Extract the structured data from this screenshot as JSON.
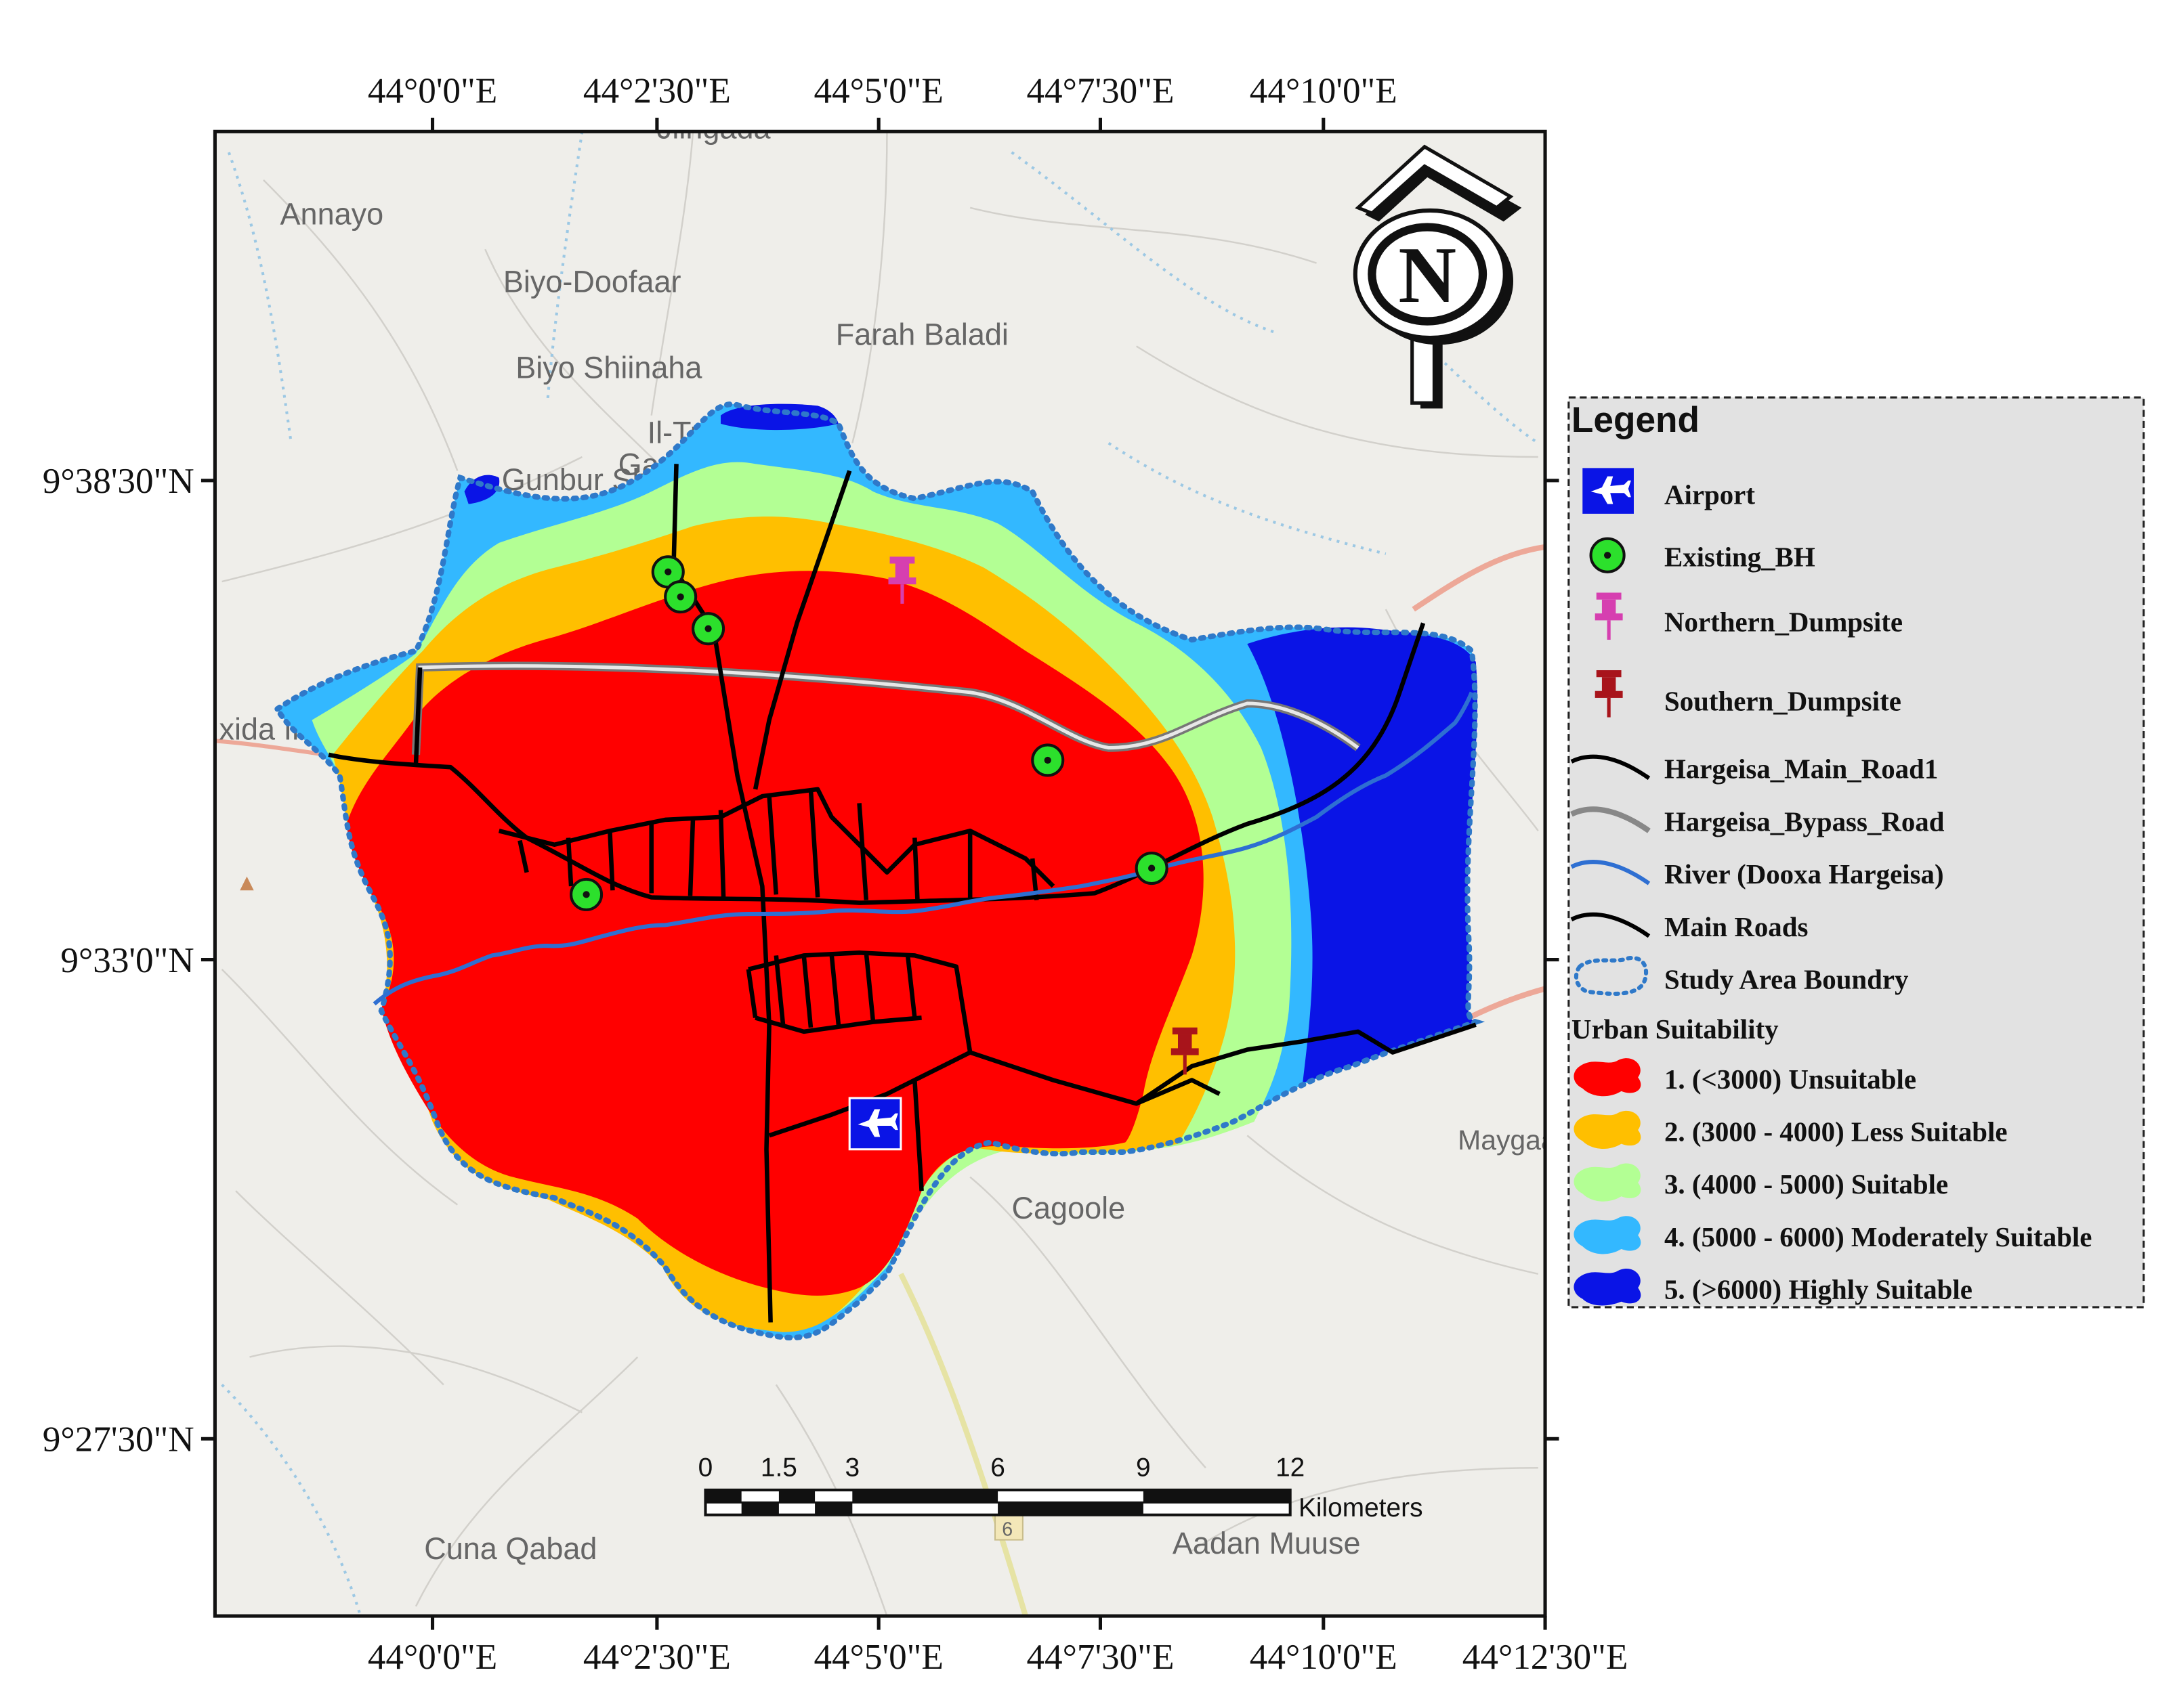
{
  "map": {
    "top_lon_labels": [
      "44°0'0\"E",
      "44°2'30\"E",
      "44°5'0\"E",
      "44°7'30\"E",
      "44°10'0\"E"
    ],
    "bottom_lon_labels": [
      "44°0'0\"E",
      "44°2'30\"E",
      "44°5'0\"E",
      "44°7'30\"E",
      "44°10'0\"E",
      "44°12'30\"E"
    ],
    "lat_labels": [
      "9°38'30\"N",
      "9°33'0\"N",
      "9°27'30\"N"
    ],
    "north_arrow_letter": "N",
    "basemap_places": [
      "Jiingada",
      "Annayo",
      "Biyo-Doofaar",
      "Farah Baladi",
      "Biyo Shiinaha",
      "Il-Tuug",
      "Gaa",
      "Gunbur Sh.",
      "xida Inanta",
      "Cagoole",
      "Maygaagta Wayn",
      "Cuna Qabad",
      "Aadan Muuse",
      "6"
    ]
  },
  "legend": {
    "title": "Legend",
    "items": [
      {
        "label": "Airport",
        "icon": "airport-icon"
      },
      {
        "label": "Existing_BH",
        "icon": "borehole-icon"
      },
      {
        "label": "Northern_Dumpsite",
        "icon": "pin-icon",
        "color": "#d63fb0"
      },
      {
        "label": "Southern_Dumpsite",
        "icon": "pin-icon",
        "color": "#a8141b"
      },
      {
        "label": "Hargeisa_Main_Road1",
        "icon": "road-line-icon"
      },
      {
        "label": "Hargeisa_Bypass_Road",
        "icon": "bypass-line-icon"
      },
      {
        "label": "River (Dooxa Hargeisa)",
        "icon": "river-line-icon"
      },
      {
        "label": "Main Roads",
        "icon": "road-line-icon"
      },
      {
        "label": "Study Area Boundry",
        "icon": "boundary-icon"
      }
    ],
    "suitability_title": "Urban Suitability",
    "suitability": [
      {
        "label": "1. (<3000) Unsuitable",
        "color": "#ff0000"
      },
      {
        "label": "2. (3000 - 4000) Less Suitable",
        "color": "#ffbf00"
      },
      {
        "label": "3. (4000 - 5000) Suitable",
        "color": "#b3ff94"
      },
      {
        "label": "4. (5000 - 6000) Moderately Suitable",
        "color": "#33b8ff"
      },
      {
        "label": "5. (>6000) Highly Suitable",
        "color": "#0a14e6"
      }
    ]
  },
  "scale_bar": {
    "ticks": [
      "0",
      "1.5",
      "3",
      "6",
      "9",
      "12"
    ],
    "unit": "Kilometers"
  }
}
